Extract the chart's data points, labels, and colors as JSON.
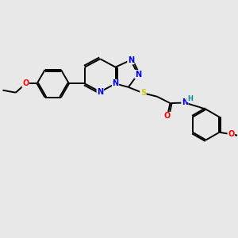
{
  "background_color": "#e8e8e8",
  "bond_color": "#000000",
  "bond_width": 1.4,
  "figsize": [
    3.0,
    3.0
  ],
  "dpi": 100,
  "colors": {
    "N": "#0000ee",
    "S": "#cccc00",
    "O": "#ff0000",
    "H": "#009090",
    "C": "#000000"
  },
  "font_size": 7.0
}
